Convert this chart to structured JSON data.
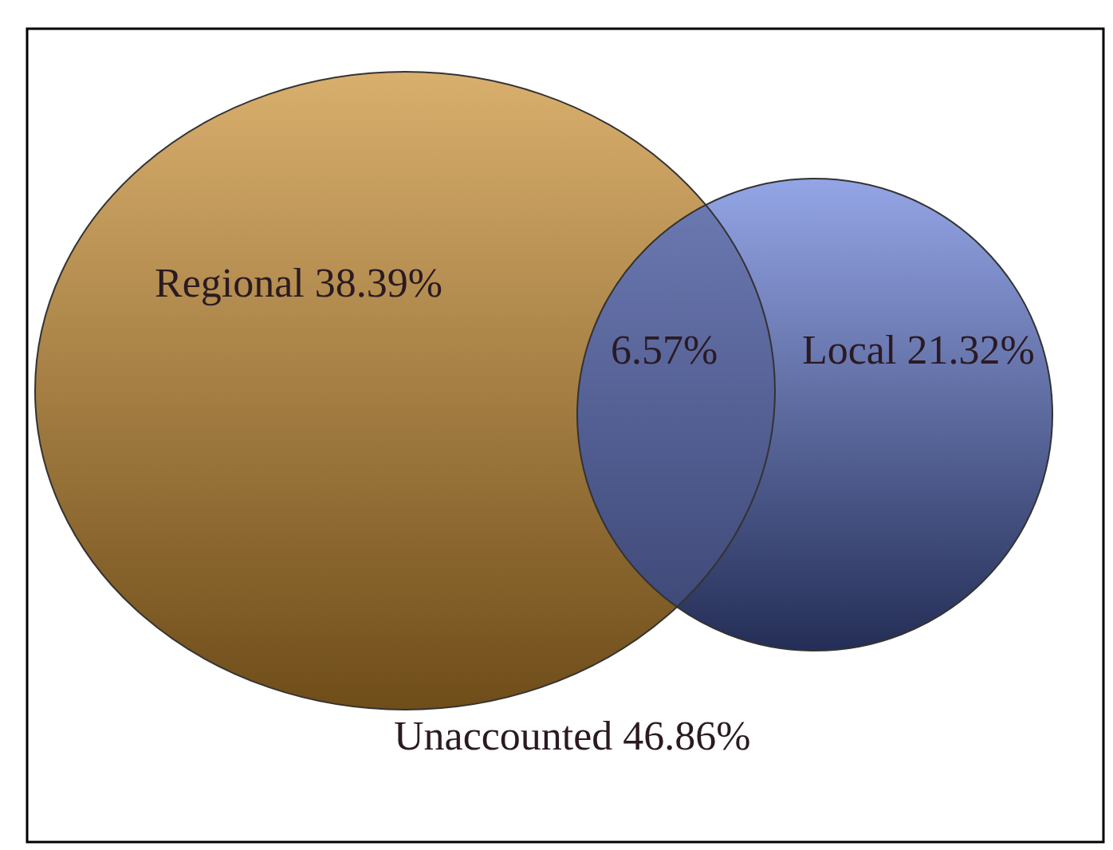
{
  "chart_data": {
    "type": "other",
    "categories": [
      "Regional",
      null,
      "Local",
      "Unaccounted"
    ],
    "values": [
      38.39,
      6.57,
      21.32,
      46.86
    ],
    "value_labels": [
      "38.39%",
      "6.57%",
      "21.32%",
      "46.86%"
    ],
    "colors": [
      "#c98c2e",
      "#4f5a8c",
      "#5a74d8",
      "#ffffff"
    ]
  }
}
